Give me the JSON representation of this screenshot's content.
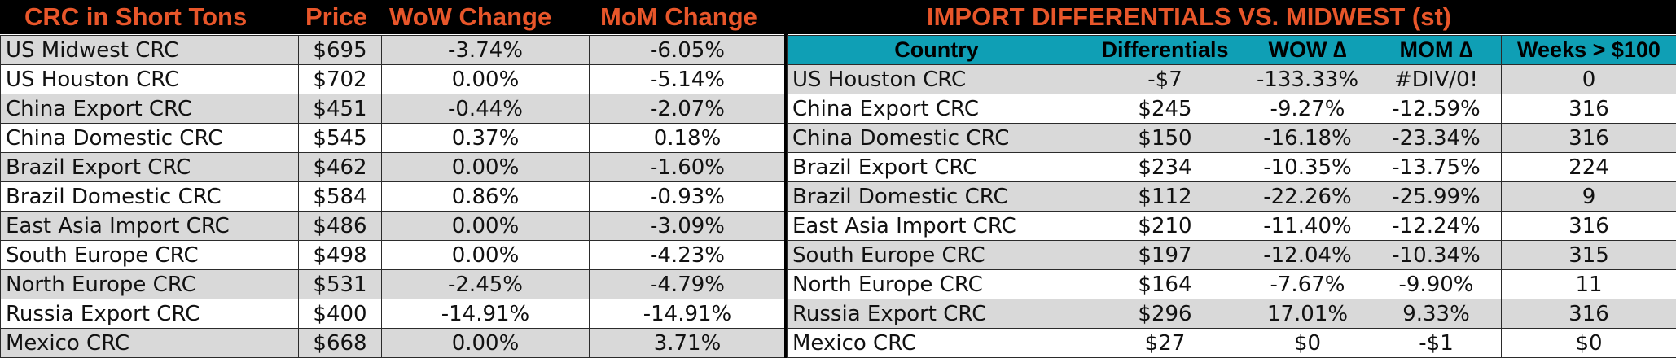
{
  "left": {
    "headers": {
      "product": "CRC in Short Tons",
      "price": "Price",
      "wow": "WoW Change",
      "mom": "MoM Change"
    },
    "rows": [
      {
        "name": "US Midwest CRC",
        "price": "$695",
        "wow": "-3.74%",
        "mom": "-6.05%"
      },
      {
        "name": "US Houston CRC",
        "price": "$702",
        "wow": "0.00%",
        "mom": "-5.14%"
      },
      {
        "name": "China Export CRC",
        "price": "$451",
        "wow": "-0.44%",
        "mom": "-2.07%"
      },
      {
        "name": "China Domestic CRC",
        "price": "$545",
        "wow": "0.37%",
        "mom": "0.18%"
      },
      {
        "name": "Brazil Export CRC",
        "price": "$462",
        "wow": "0.00%",
        "mom": "-1.60%"
      },
      {
        "name": "Brazil Domestic CRC",
        "price": "$584",
        "wow": "0.86%",
        "mom": "-0.93%"
      },
      {
        "name": "East Asia Import CRC",
        "price": "$486",
        "wow": "0.00%",
        "mom": "-3.09%"
      },
      {
        "name": "South Europe CRC",
        "price": "$498",
        "wow": "0.00%",
        "mom": "-4.23%"
      },
      {
        "name": "North Europe CRC",
        "price": "$531",
        "wow": "-2.45%",
        "mom": "-4.79%"
      },
      {
        "name": "Russia Export CRC",
        "price": "$400",
        "wow": "-14.91%",
        "mom": "-14.91%"
      },
      {
        "name": "Mexico CRC",
        "price": "$668",
        "wow": "0.00%",
        "mom": "3.71%"
      }
    ]
  },
  "right": {
    "title": "IMPORT DIFFERENTIALS VS. MIDWEST (st)",
    "columns": {
      "country": "Country",
      "diff": "Differentials",
      "wow": "WOW ∆",
      "mom": "MOM ∆",
      "weeks": "Weeks > $100"
    },
    "rows": [
      {
        "country": "US Houston CRC",
        "diff": "-$7",
        "wow": "-133.33%",
        "mom": "#DIV/0!",
        "weeks": "0"
      },
      {
        "country": "China Export CRC",
        "diff": "$245",
        "wow": "-9.27%",
        "mom": "-12.59%",
        "weeks": "316"
      },
      {
        "country": "China Domestic CRC",
        "diff": "$150",
        "wow": "-16.18%",
        "mom": "-23.34%",
        "weeks": "316"
      },
      {
        "country": "Brazil Export CRC",
        "diff": "$234",
        "wow": "-10.35%",
        "mom": "-13.75%",
        "weeks": "224"
      },
      {
        "country": "Brazil Domestic CRC",
        "diff": "$112",
        "wow": "-22.26%",
        "mom": "-25.99%",
        "weeks": "9"
      },
      {
        "country": "East Asia Import CRC",
        "diff": "$210",
        "wow": "-11.40%",
        "mom": "-12.24%",
        "weeks": "316"
      },
      {
        "country": "South Europe CRC",
        "diff": "$197",
        "wow": "-12.04%",
        "mom": "-10.34%",
        "weeks": "315"
      },
      {
        "country": "North Europe CRC",
        "diff": "$164",
        "wow": "-7.67%",
        "mom": "-9.90%",
        "weeks": "11"
      },
      {
        "country": "Russia Export CRC",
        "diff": "$296",
        "wow": "17.01%",
        "mom": "9.33%",
        "weeks": "316"
      },
      {
        "country": "Mexico CRC",
        "diff": "$27",
        "wow": "$0",
        "mom": "-$1",
        "weeks": "$0"
      }
    ]
  },
  "colors": {
    "header_bg": "#000000",
    "header_text": "#e8562a",
    "column_header_bg": "#0f9fb5",
    "row_shade": "#d9d9d9",
    "row_plain": "#ffffff"
  }
}
